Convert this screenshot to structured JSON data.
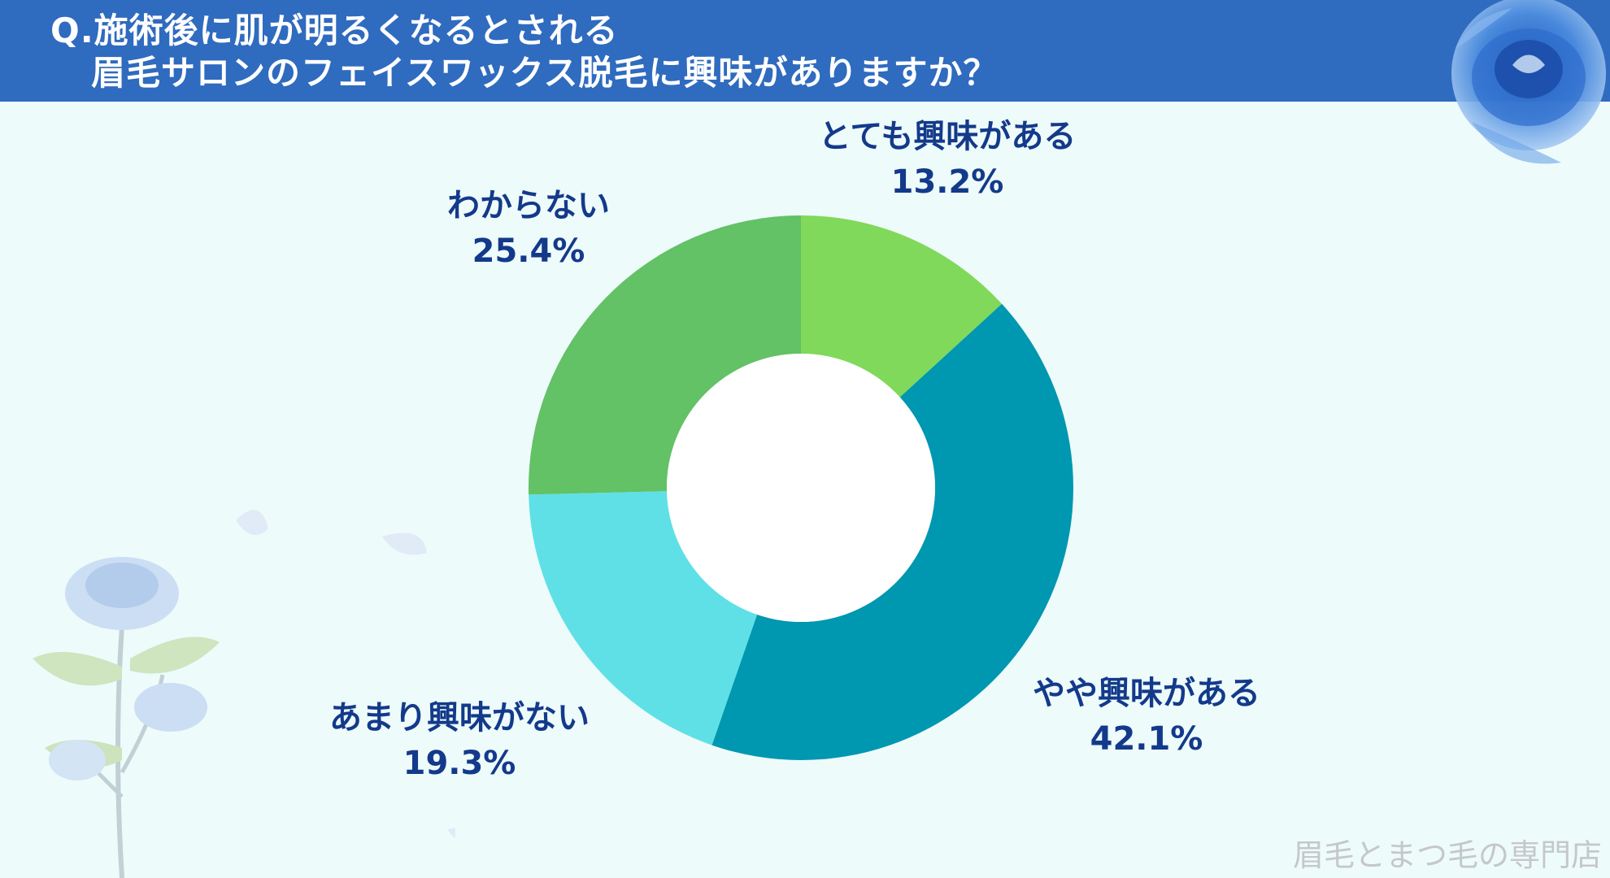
{
  "header": {
    "title_line1": "Q.施術後に肌が明るくなるとされる",
    "title_line2": "眉毛サロンのフェイスワックス脱毛に興味がありますか？"
  },
  "chart_data": {
    "type": "pie",
    "donut": true,
    "categories": [
      "とても興味がある",
      "やや興味がある",
      "あまり興味がない",
      "わからない"
    ],
    "values": [
      13.2,
      42.1,
      19.3,
      25.4
    ],
    "value_labels": [
      "13.2%",
      "42.1%",
      "19.3%",
      "25.4%"
    ],
    "colors": [
      "#80d95a",
      "#0097b0",
      "#5fe0e6",
      "#63c166"
    ],
    "start_angle_deg": 0,
    "direction": "clockwise",
    "legend": "none"
  },
  "colors": {
    "header_bg": "#2f6bbf",
    "page_bg": "#eefbfb",
    "label_text": "#133a8a"
  },
  "decorations": {
    "top_right": "blue-rose-illustration",
    "bottom_left": "blue-rose-bouquet-illustration"
  },
  "watermark": "眉毛とまつ毛の専門店"
}
